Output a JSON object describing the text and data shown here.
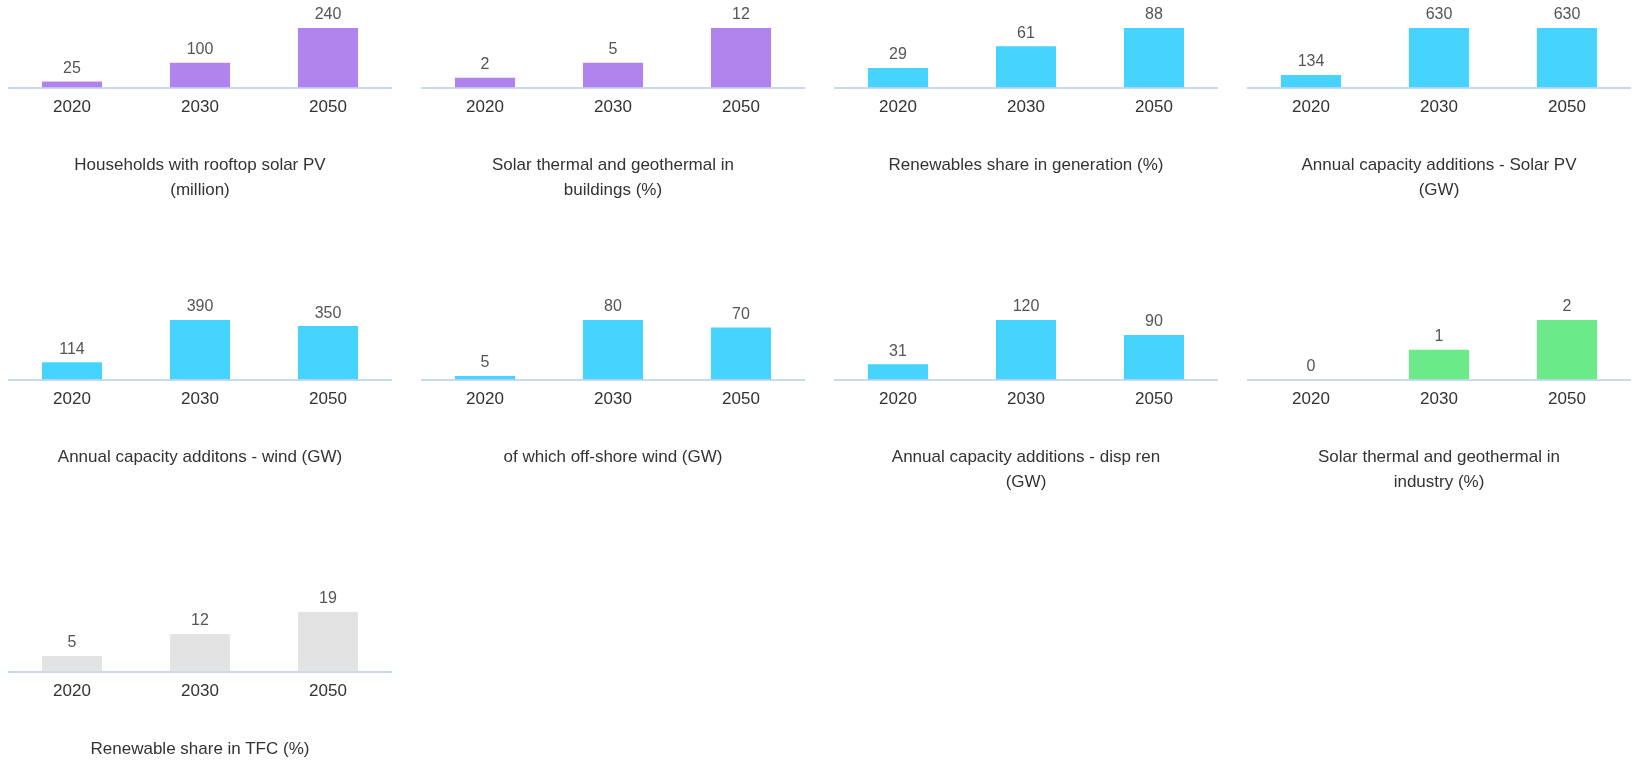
{
  "chart_data": [
    {
      "type": "bar",
      "xlabel": "Households with rooftop solar PV (million)",
      "categories": [
        "2020",
        "2030",
        "2050"
      ],
      "values": [
        25,
        100,
        240
      ],
      "color": "#b084ec",
      "data_labels": true,
      "tick_labels": "x",
      "grid": false,
      "legend": false
    },
    {
      "type": "bar",
      "xlabel": "Solar thermal and geothermal in buildings (%)",
      "categories": [
        "2020",
        "2030",
        "2050"
      ],
      "values": [
        2,
        5,
        12
      ],
      "color": "#b084ec",
      "data_labels": true,
      "tick_labels": "x",
      "grid": false,
      "legend": false
    },
    {
      "type": "bar",
      "xlabel": "Renewables share in generation (%)",
      "categories": [
        "2020",
        "2030",
        "2050"
      ],
      "values": [
        29,
        61,
        88
      ],
      "color": "#46d3fd",
      "data_labels": true,
      "tick_labels": "x",
      "grid": false,
      "legend": false
    },
    {
      "type": "bar",
      "xlabel": "Annual capacity additions - Solar PV (GW)",
      "categories": [
        "2020",
        "2030",
        "2050"
      ],
      "values": [
        134,
        630,
        630
      ],
      "color": "#46d3fd",
      "data_labels": true,
      "tick_labels": "x",
      "grid": false,
      "legend": false
    },
    {
      "type": "bar",
      "xlabel": "Annual capacity additons - wind (GW)",
      "categories": [
        "2020",
        "2030",
        "2050"
      ],
      "values": [
        114,
        390,
        350
      ],
      "color": "#46d3fd",
      "data_labels": true,
      "tick_labels": "x",
      "grid": false,
      "legend": false
    },
    {
      "type": "bar",
      "xlabel": "of which off-shore wind (GW)",
      "categories": [
        "2020",
        "2030",
        "2050"
      ],
      "values": [
        5,
        80,
        70
      ],
      "color": "#46d3fd",
      "data_labels": true,
      "tick_labels": "x",
      "grid": false,
      "legend": false
    },
    {
      "type": "bar",
      "xlabel": "Annual capacity additions - disp ren (GW)",
      "categories": [
        "2020",
        "2030",
        "2050"
      ],
      "values": [
        31,
        120,
        90
      ],
      "color": "#46d3fd",
      "data_labels": true,
      "tick_labels": "x",
      "grid": false,
      "legend": false
    },
    {
      "type": "bar",
      "xlabel": "Solar thermal and geothermal in industry (%)",
      "categories": [
        "2020",
        "2030",
        "2050"
      ],
      "values": [
        0,
        1,
        2
      ],
      "color": "#6bea8a",
      "data_labels": true,
      "tick_labels": "x",
      "grid": false,
      "legend": false
    },
    {
      "type": "bar",
      "xlabel": "Renewable share in TFC (%)",
      "categories": [
        "2020",
        "2030",
        "2050"
      ],
      "values": [
        5,
        12,
        19
      ],
      "color": "#e3e3e3",
      "data_labels": true,
      "tick_labels": "x",
      "grid": false,
      "legend": false
    }
  ]
}
